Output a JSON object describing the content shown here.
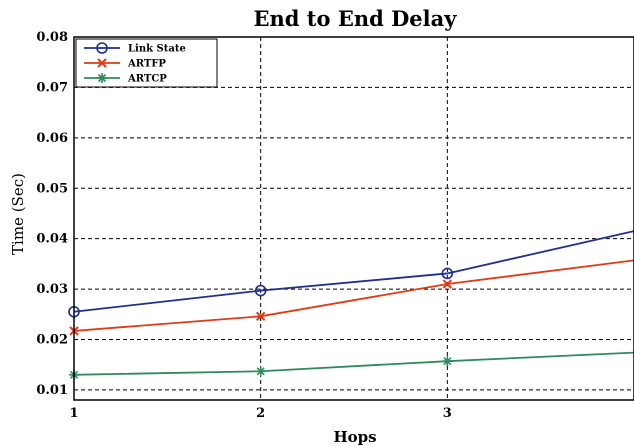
{
  "chart_data": {
    "type": "line",
    "title": "End to End Delay",
    "xlabel": "Hops",
    "ylabel": "Time (Sec)",
    "x_ticks": [
      1,
      2,
      3
    ],
    "y_ticks": [
      "0.01",
      "0.02",
      "0.03",
      "0.04",
      "0.05",
      "0.06",
      "0.07",
      "0.08"
    ],
    "xlim": [
      1,
      4
    ],
    "ylim": [
      0.008,
      0.08
    ],
    "grid": true,
    "legend_position": "top-left",
    "series": [
      {
        "name": "Link State",
        "color": "#1f2f8f",
        "marker": "circle",
        "x": [
          1,
          2,
          3,
          4
        ],
        "y": [
          0.0255,
          0.0297,
          0.0331,
          0.0415
        ]
      },
      {
        "name": "ARTFP",
        "color": "#e23a12",
        "marker": "x",
        "x": [
          1,
          2,
          3,
          4
        ],
        "y": [
          0.0217,
          0.0246,
          0.031,
          0.0357
        ]
      },
      {
        "name": "ARTCP",
        "color": "#2e8b5a",
        "marker": "star",
        "x": [
          1,
          2,
          3,
          4
        ],
        "y": [
          0.013,
          0.0137,
          0.0157,
          0.0174
        ]
      }
    ]
  }
}
